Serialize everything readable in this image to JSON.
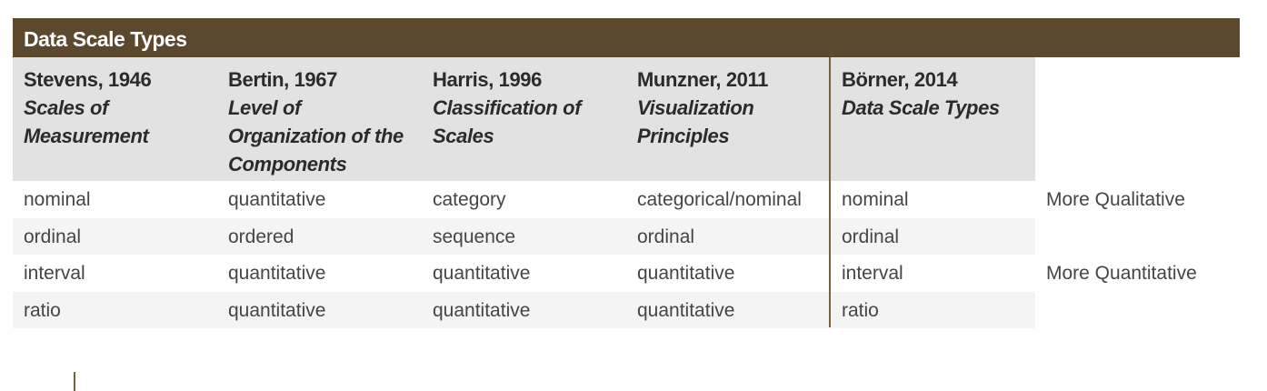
{
  "title": "Data Scale Types",
  "columns": [
    {
      "author": "Stevens, 1946",
      "work_lines": [
        "Scales of",
        "Measurement"
      ]
    },
    {
      "author": "Bertin, 1967",
      "work_lines": [
        "Level of",
        "Organization of the",
        "Components"
      ]
    },
    {
      "author": "Harris, 1996",
      "work_lines": [
        "Classification of",
        "Scales"
      ]
    },
    {
      "author": "Munzner, 2011",
      "work_lines": [
        "Visualization",
        "Principles"
      ]
    },
    {
      "author": "Börner, 2014",
      "work_lines": [
        "Data Scale Types"
      ]
    }
  ],
  "rows": [
    {
      "cells": [
        "nominal",
        "quantitative",
        "category",
        "categorical/nominal",
        "nominal"
      ],
      "note": "More Qualitative"
    },
    {
      "cells": [
        "ordinal",
        "ordered",
        "sequence",
        "ordinal",
        "ordinal"
      ],
      "note": ""
    },
    {
      "cells": [
        "interval",
        "quantitative",
        "quantitative",
        "quantitative",
        "interval"
      ],
      "note": "More Quantitative"
    },
    {
      "cells": [
        "ratio",
        "quantitative",
        "quantitative",
        "quantitative",
        "ratio"
      ],
      "note": ""
    }
  ]
}
